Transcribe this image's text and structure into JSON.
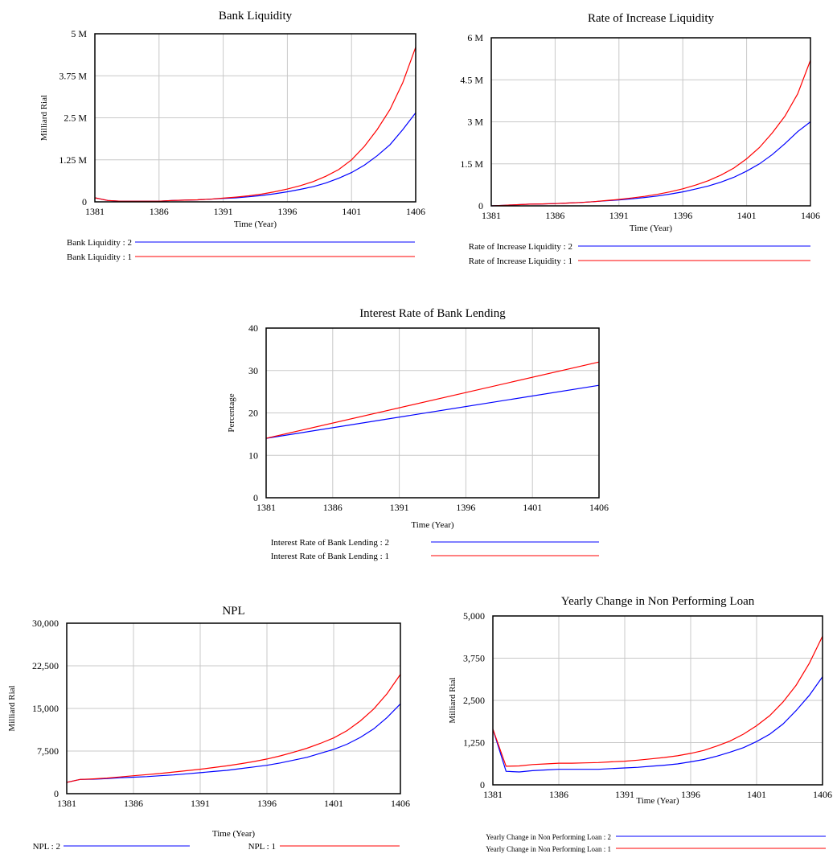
{
  "chart_data": [
    {
      "type": "line",
      "title": "Bank Liquidity",
      "xlabel": "Time (Year)",
      "ylabel": "Milliard Rial",
      "ylim": [
        0,
        5000000
      ],
      "xlim": [
        1381,
        1406
      ],
      "x_ticks": [
        "1381",
        "1386",
        "1391",
        "1396",
        "1401",
        "1406"
      ],
      "y_ticks": [
        "0",
        "1.25 M",
        "2.5 M",
        "3.75 M",
        "5 M"
      ],
      "grid": true,
      "legend_position": "bottom",
      "x": [
        1381,
        1382,
        1383,
        1384,
        1385,
        1386,
        1387,
        1388,
        1389,
        1390,
        1391,
        1392,
        1393,
        1394,
        1395,
        1396,
        1397,
        1398,
        1399,
        1400,
        1401,
        1402,
        1403,
        1404,
        1405,
        1406
      ],
      "series": [
        {
          "name": "Bank Liquidity : 2",
          "color": "#0000ff",
          "values": [
            120000,
            40000,
            20000,
            20000,
            20000,
            20000,
            40000,
            50000,
            60000,
            80000,
            100000,
            120000,
            150000,
            190000,
            240000,
            300000,
            370000,
            450000,
            560000,
            700000,
            870000,
            1090000,
            1370000,
            1700000,
            2150000,
            2650000
          ]
        },
        {
          "name": "Bank Liquidity : 1",
          "color": "#ff0000",
          "values": [
            120000,
            40000,
            20000,
            20000,
            20000,
            20000,
            40000,
            50000,
            60000,
            80000,
            110000,
            140000,
            180000,
            230000,
            300000,
            380000,
            480000,
            600000,
            760000,
            960000,
            1250000,
            1650000,
            2150000,
            2750000,
            3550000,
            4600000
          ]
        }
      ]
    },
    {
      "type": "line",
      "title": "Rate of Increase Liquidity",
      "xlabel": "Time (Year)",
      "ylabel": "",
      "ylim": [
        0,
        6000000
      ],
      "xlim": [
        1381,
        1406
      ],
      "x_ticks": [
        "1381",
        "1386",
        "1391",
        "1396",
        "1401",
        "1406"
      ],
      "y_ticks": [
        "0",
        "1.5 M",
        "3 M",
        "4.5 M",
        "6 M"
      ],
      "grid": true,
      "legend_position": "bottom",
      "x": [
        1381,
        1382,
        1383,
        1384,
        1385,
        1386,
        1387,
        1388,
        1389,
        1390,
        1391,
        1392,
        1393,
        1394,
        1395,
        1396,
        1397,
        1398,
        1399,
        1400,
        1401,
        1402,
        1403,
        1404,
        1405,
        1406
      ],
      "series": [
        {
          "name": "Rate of Increase Liquidity : 2",
          "color": "#0000ff",
          "values": [
            0,
            20000,
            40000,
            60000,
            70000,
            80000,
            100000,
            120000,
            150000,
            180000,
            210000,
            250000,
            300000,
            350000,
            420000,
            500000,
            600000,
            710000,
            850000,
            1020000,
            1240000,
            1500000,
            1830000,
            2220000,
            2650000,
            3000000
          ]
        },
        {
          "name": "Rate of Increase Liquidity : 1",
          "color": "#ff0000",
          "values": [
            0,
            20000,
            40000,
            60000,
            70000,
            80000,
            100000,
            120000,
            150000,
            190000,
            230000,
            280000,
            340000,
            410000,
            500000,
            610000,
            740000,
            900000,
            1100000,
            1350000,
            1680000,
            2080000,
            2600000,
            3200000,
            4000000,
            5200000
          ]
        }
      ]
    },
    {
      "type": "line",
      "title": "Interest Rate of Bank Lending",
      "xlabel": "Time (Year)",
      "ylabel": "Percentage",
      "ylim": [
        0,
        40
      ],
      "xlim": [
        1381,
        1406
      ],
      "x_ticks": [
        "1381",
        "1386",
        "1391",
        "1396",
        "1401",
        "1406"
      ],
      "y_ticks": [
        "0",
        "10",
        "20",
        "30",
        "40"
      ],
      "grid": true,
      "legend_position": "bottom",
      "x": [
        1381,
        1406
      ],
      "series": [
        {
          "name": "Interest Rate of Bank Lending : 2",
          "color": "#0000ff",
          "values": [
            14,
            26.5
          ]
        },
        {
          "name": "Interest Rate of Bank Lending : 1",
          "color": "#ff0000",
          "values": [
            14,
            32
          ]
        }
      ]
    },
    {
      "type": "line",
      "title": "NPL",
      "xlabel": "Time (Year)",
      "ylabel": "Milliard Rial",
      "ylim": [
        0,
        30000
      ],
      "xlim": [
        1381,
        1406
      ],
      "x_ticks": [
        "1381",
        "1386",
        "1391",
        "1396",
        "1401",
        "1406"
      ],
      "y_ticks": [
        "0",
        "7,500",
        "15,000",
        "22,500",
        "30,000"
      ],
      "grid": true,
      "legend_position": "bottom",
      "x": [
        1381,
        1382,
        1383,
        1384,
        1385,
        1386,
        1387,
        1388,
        1389,
        1390,
        1391,
        1392,
        1393,
        1394,
        1395,
        1396,
        1397,
        1398,
        1399,
        1400,
        1401,
        1402,
        1403,
        1404,
        1405,
        1406
      ],
      "series": [
        {
          "name": "NPL : 2",
          "color": "#0000ff",
          "values": [
            2000,
            2500,
            2550,
            2650,
            2800,
            2900,
            3000,
            3150,
            3300,
            3500,
            3700,
            3900,
            4100,
            4400,
            4700,
            5000,
            5400,
            5900,
            6400,
            7100,
            7800,
            8700,
            9900,
            11400,
            13400,
            15800
          ]
        },
        {
          "name": "NPL : 1",
          "color": "#ff0000",
          "values": [
            2000,
            2500,
            2600,
            2750,
            2950,
            3150,
            3350,
            3550,
            3800,
            4050,
            4300,
            4600,
            4900,
            5250,
            5650,
            6100,
            6650,
            7300,
            8000,
            8850,
            9800,
            11100,
            12800,
            14900,
            17600,
            21000
          ]
        }
      ]
    },
    {
      "type": "line",
      "title": "Yearly Change in Non Performing Loan",
      "xlabel": "Time (Year)",
      "ylabel": "Milliard Rial",
      "ylim": [
        0,
        5000
      ],
      "xlim": [
        1381,
        1406
      ],
      "x_ticks": [
        "1381",
        "1386",
        "1391",
        "1396",
        "1401",
        "1406"
      ],
      "y_ticks": [
        "0",
        "1,250",
        "2,500",
        "3,750",
        "5,000"
      ],
      "grid": true,
      "legend_position": "bottom",
      "x": [
        1381,
        1382,
        1383,
        1384,
        1385,
        1386,
        1387,
        1388,
        1389,
        1390,
        1391,
        1392,
        1393,
        1394,
        1395,
        1396,
        1397,
        1398,
        1399,
        1400,
        1401,
        1402,
        1403,
        1404,
        1405,
        1406
      ],
      "series": [
        {
          "name": "Yearly Change in Non Performing Loan : 2",
          "color": "#0000ff",
          "values": [
            1650,
            400,
            380,
            420,
            440,
            460,
            460,
            460,
            460,
            480,
            500,
            520,
            550,
            580,
            620,
            680,
            750,
            850,
            970,
            1100,
            1280,
            1500,
            1800,
            2200,
            2650,
            3200
          ]
        },
        {
          "name": "Yearly Change in Non Performing Loan : 1",
          "color": "#ff0000",
          "values": [
            1650,
            550,
            560,
            600,
            620,
            640,
            640,
            650,
            660,
            680,
            700,
            730,
            770,
            810,
            860,
            930,
            1020,
            1150,
            1300,
            1500,
            1750,
            2050,
            2450,
            2950,
            3600,
            4400
          ]
        }
      ]
    }
  ]
}
